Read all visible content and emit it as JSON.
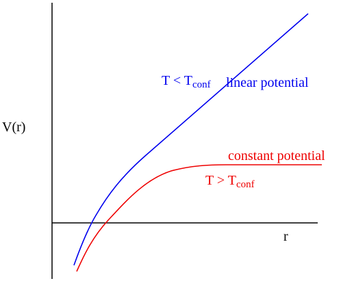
{
  "axes": {
    "y_label": "V(r)",
    "x_label": "r"
  },
  "curves": [
    {
      "name": "linear potential",
      "condition": {
        "main": "T < T",
        "subscript": "conf"
      }
    },
    {
      "name": "constant potential",
      "condition": {
        "main": "T > T",
        "subscript": "conf"
      }
    }
  ]
}
